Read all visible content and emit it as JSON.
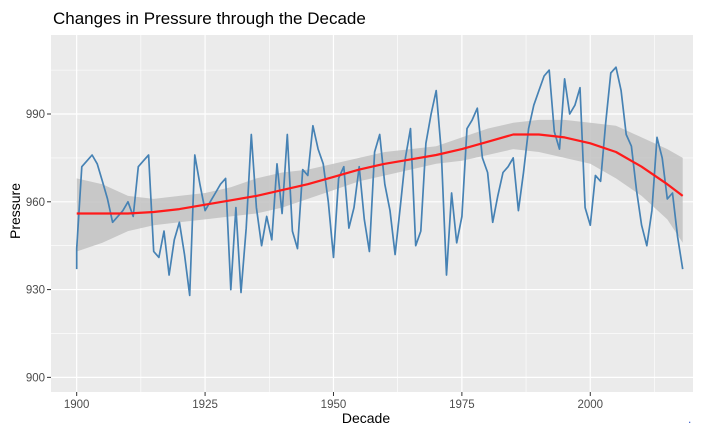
{
  "chart_data": {
    "type": "line",
    "title": "Changes in Pressure through the Decade",
    "xlabel": "Decade",
    "ylabel": "Pressure",
    "xlim": [
      1895,
      2020
    ],
    "ylim": [
      895,
      1017
    ],
    "x_ticks": [
      1900,
      1925,
      1950,
      1975,
      2000
    ],
    "y_ticks": [
      900,
      930,
      960,
      990
    ],
    "x_tick_labels": [
      "1900",
      "1925",
      "1950",
      "1975",
      "2000"
    ],
    "y_tick_labels": [
      "900",
      "930",
      "960",
      "990"
    ],
    "grid": true,
    "legend": "none",
    "colors": {
      "panel_background": "#ebebeb",
      "grid": "#ffffff",
      "series_line": "#4682b4",
      "smooth_line": "#ff1a1a",
      "confidence_band": "#c2c2c2"
    },
    "series": [
      {
        "values": [
          [
            1900,
            937
          ],
          [
            1900,
            944
          ],
          [
            1901,
            972
          ],
          [
            1902,
            974
          ],
          [
            1903,
            976
          ],
          [
            1904,
            973
          ],
          [
            1905,
            967
          ],
          [
            1906,
            961
          ],
          [
            1907,
            953
          ],
          [
            1908,
            955
          ],
          [
            1909,
            957
          ],
          [
            1910,
            960
          ],
          [
            1911,
            955
          ],
          [
            1912,
            972
          ],
          [
            1913,
            974
          ],
          [
            1914,
            976
          ],
          [
            1915,
            943
          ],
          [
            1916,
            941
          ],
          [
            1917,
            950
          ],
          [
            1918,
            935
          ],
          [
            1919,
            947
          ],
          [
            1920,
            953
          ],
          [
            1921,
            942
          ],
          [
            1922,
            928
          ],
          [
            1923,
            976
          ],
          [
            1924,
            966
          ],
          [
            1925,
            957
          ],
          [
            1926,
            960
          ],
          [
            1927,
            963
          ],
          [
            1928,
            966
          ],
          [
            1929,
            968
          ],
          [
            1930,
            930
          ],
          [
            1931,
            958
          ],
          [
            1932,
            929
          ],
          [
            1933,
            951
          ],
          [
            1934,
            983
          ],
          [
            1935,
            958
          ],
          [
            1936,
            945
          ],
          [
            1937,
            955
          ],
          [
            1938,
            947
          ],
          [
            1939,
            973
          ],
          [
            1940,
            956
          ],
          [
            1941,
            983
          ],
          [
            1942,
            950
          ],
          [
            1943,
            944
          ],
          [
            1944,
            971
          ],
          [
            1945,
            969
          ],
          [
            1946,
            986
          ],
          [
            1947,
            978
          ],
          [
            1948,
            973
          ],
          [
            1949,
            960
          ],
          [
            1950,
            941
          ],
          [
            1951,
            968
          ],
          [
            1952,
            972
          ],
          [
            1953,
            951
          ],
          [
            1954,
            958
          ],
          [
            1955,
            972
          ],
          [
            1956,
            954
          ],
          [
            1957,
            943
          ],
          [
            1958,
            977
          ],
          [
            1959,
            983
          ],
          [
            1960,
            966
          ],
          [
            1961,
            957
          ],
          [
            1962,
            942
          ],
          [
            1963,
            958
          ],
          [
            1964,
            975
          ],
          [
            1965,
            985
          ],
          [
            1966,
            945
          ],
          [
            1967,
            950
          ],
          [
            1968,
            980
          ],
          [
            1969,
            990
          ],
          [
            1970,
            998
          ],
          [
            1971,
            977
          ],
          [
            1972,
            935
          ],
          [
            1973,
            963
          ],
          [
            1974,
            946
          ],
          [
            1975,
            955
          ],
          [
            1976,
            985
          ],
          [
            1977,
            988
          ],
          [
            1978,
            992
          ],
          [
            1979,
            975
          ],
          [
            1980,
            970
          ],
          [
            1981,
            953
          ],
          [
            1982,
            962
          ],
          [
            1983,
            970
          ],
          [
            1984,
            972
          ],
          [
            1985,
            975
          ],
          [
            1986,
            957
          ],
          [
            1987,
            970
          ],
          [
            1988,
            985
          ],
          [
            1989,
            993
          ],
          [
            1990,
            998
          ],
          [
            1991,
            1003
          ],
          [
            1992,
            1005
          ],
          [
            1993,
            984
          ],
          [
            1994,
            978
          ],
          [
            1995,
            1002
          ],
          [
            1996,
            990
          ],
          [
            1997,
            993
          ],
          [
            1998,
            999
          ],
          [
            1999,
            958
          ],
          [
            2000,
            952
          ],
          [
            2001,
            969
          ],
          [
            2002,
            967
          ],
          [
            2003,
            987
          ],
          [
            2004,
            1004
          ],
          [
            2005,
            1006
          ],
          [
            2006,
            998
          ],
          [
            2007,
            983
          ],
          [
            2008,
            979
          ],
          [
            2009,
            964
          ],
          [
            2010,
            952
          ],
          [
            2011,
            945
          ],
          [
            2012,
            957
          ],
          [
            2013,
            982
          ],
          [
            2014,
            975
          ],
          [
            2015,
            961
          ],
          [
            2016,
            963
          ],
          [
            2017,
            948
          ],
          [
            2018,
            937
          ]
        ]
      },
      {
        "values": [
          [
            1900,
            956
          ],
          [
            1905,
            956
          ],
          [
            1910,
            956
          ],
          [
            1915,
            956.5
          ],
          [
            1920,
            957.5
          ],
          [
            1925,
            959
          ],
          [
            1930,
            960.5
          ],
          [
            1935,
            962
          ],
          [
            1940,
            964
          ],
          [
            1945,
            966
          ],
          [
            1950,
            968.5
          ],
          [
            1955,
            971
          ],
          [
            1960,
            973
          ],
          [
            1965,
            974.5
          ],
          [
            1970,
            976
          ],
          [
            1975,
            978
          ],
          [
            1980,
            980.5
          ],
          [
            1985,
            983
          ],
          [
            1990,
            983
          ],
          [
            1995,
            982
          ],
          [
            2000,
            980
          ],
          [
            2005,
            977
          ],
          [
            2010,
            972
          ],
          [
            2015,
            966
          ],
          [
            2018,
            962
          ]
        ]
      }
    ],
    "confidence_band": {
      "x": [
        1900,
        1905,
        1910,
        1915,
        1920,
        1925,
        1930,
        1935,
        1940,
        1945,
        1950,
        1955,
        1960,
        1965,
        1970,
        1975,
        1980,
        1985,
        1990,
        1995,
        2000,
        2005,
        2010,
        2015,
        2018
      ],
      "lower": [
        943,
        946,
        950,
        952,
        953,
        954,
        955,
        956,
        958,
        961,
        964,
        967,
        969,
        971,
        973,
        974,
        976,
        978,
        977,
        975,
        973,
        968,
        962,
        954,
        946
      ],
      "upper": [
        968,
        966,
        962,
        961,
        962,
        963,
        965,
        968,
        970,
        971,
        973,
        975,
        977,
        978,
        979,
        982,
        985,
        987,
        988,
        988,
        987,
        986,
        982,
        978,
        975
      ]
    },
    "annotations": [
      "."
    ]
  }
}
